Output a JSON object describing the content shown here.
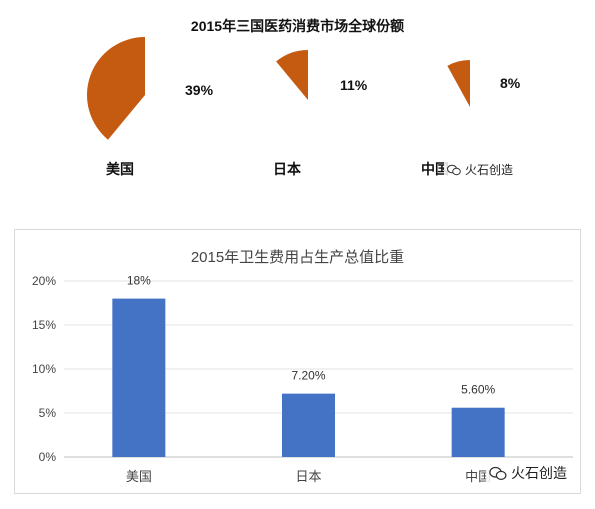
{
  "chart_data": [
    {
      "type": "pie",
      "title": "2015年三国医药消费市场全球份额",
      "categories": [
        "美国",
        "日本",
        "中国"
      ],
      "values": [
        39,
        11,
        8
      ],
      "value_labels": [
        "39%",
        "11%",
        "8%"
      ],
      "color": "#C55A11"
    },
    {
      "type": "bar",
      "title": "2015年卫生费用占生产总值比重",
      "categories": [
        "美国",
        "日本",
        "中国"
      ],
      "values": [
        18,
        7.2,
        5.6
      ],
      "value_labels": [
        "18%",
        "7.20%",
        "5.60%"
      ],
      "ylim": [
        0,
        20
      ],
      "yticks": [
        "0%",
        "5%",
        "10%",
        "15%",
        "20%"
      ],
      "grid": true,
      "color": "#4472C4"
    }
  ],
  "watermark": {
    "text": "火石创造"
  }
}
